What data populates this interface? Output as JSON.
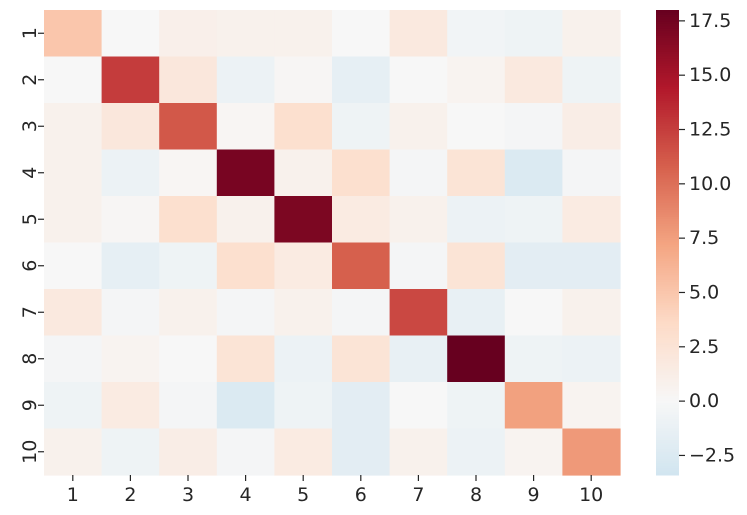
{
  "chart_data": {
    "type": "heatmap",
    "title": "",
    "xlabel": "",
    "ylabel": "",
    "x_categories": [
      "1",
      "2",
      "3",
      "4",
      "5",
      "6",
      "7",
      "8",
      "9",
      "10"
    ],
    "y_categories": [
      "1",
      "2",
      "3",
      "4",
      "5",
      "6",
      "7",
      "8",
      "9",
      "10"
    ],
    "values": [
      [
        5.0,
        0.0,
        1.0,
        0.8,
        0.8,
        0.0,
        1.8,
        -0.5,
        -0.8,
        0.8
      ],
      [
        0.0,
        12.6,
        2.0,
        -1.0,
        0.2,
        -1.5,
        0.0,
        0.5,
        1.8,
        -0.8
      ],
      [
        0.8,
        2.0,
        11.2,
        0.3,
        3.0,
        -0.8,
        0.8,
        0.0,
        -0.3,
        1.3
      ],
      [
        0.8,
        -1.0,
        0.3,
        17.2,
        0.8,
        3.0,
        -0.3,
        2.5,
        -2.5,
        -0.3
      ],
      [
        0.8,
        0.2,
        3.0,
        0.8,
        17.0,
        1.6,
        0.8,
        -1.0,
        -0.8,
        1.6
      ],
      [
        0.0,
        -1.5,
        -0.8,
        3.0,
        1.6,
        10.8,
        -0.3,
        2.5,
        -1.8,
        -1.8
      ],
      [
        1.8,
        -0.3,
        0.8,
        -0.3,
        0.8,
        -0.3,
        12.0,
        -1.3,
        0.0,
        0.8
      ],
      [
        -0.3,
        0.5,
        0.0,
        2.5,
        -1.0,
        2.5,
        -1.3,
        18.0,
        -0.8,
        -1.0
      ],
      [
        -0.8,
        1.6,
        -0.3,
        -2.5,
        -0.8,
        -1.8,
        0.0,
        -0.8,
        7.4,
        0.5
      ],
      [
        0.8,
        -0.8,
        1.3,
        -0.3,
        1.6,
        -1.8,
        0.8,
        -1.0,
        0.5,
        7.8
      ]
    ],
    "color_scale": {
      "min": -3.4,
      "max": 18.0,
      "center": 0.0,
      "negative_color": "#d1e5f0",
      "neutral_color": "#f7f7f7",
      "positive_stops": [
        "#f7f7f7",
        "#fddbc7",
        "#f4a582",
        "#d6604d",
        "#b2182b",
        "#67001f"
      ],
      "ticks": [
        "17.5",
        "15.0",
        "12.5",
        "10.0",
        "7.5",
        "5.0",
        "2.5",
        "0.0",
        "−2.5"
      ],
      "tick_values": [
        17.5,
        15.0,
        12.5,
        10.0,
        7.5,
        5.0,
        2.5,
        0.0,
        -2.5
      ]
    },
    "grid": false,
    "colorbar_position": "right"
  }
}
